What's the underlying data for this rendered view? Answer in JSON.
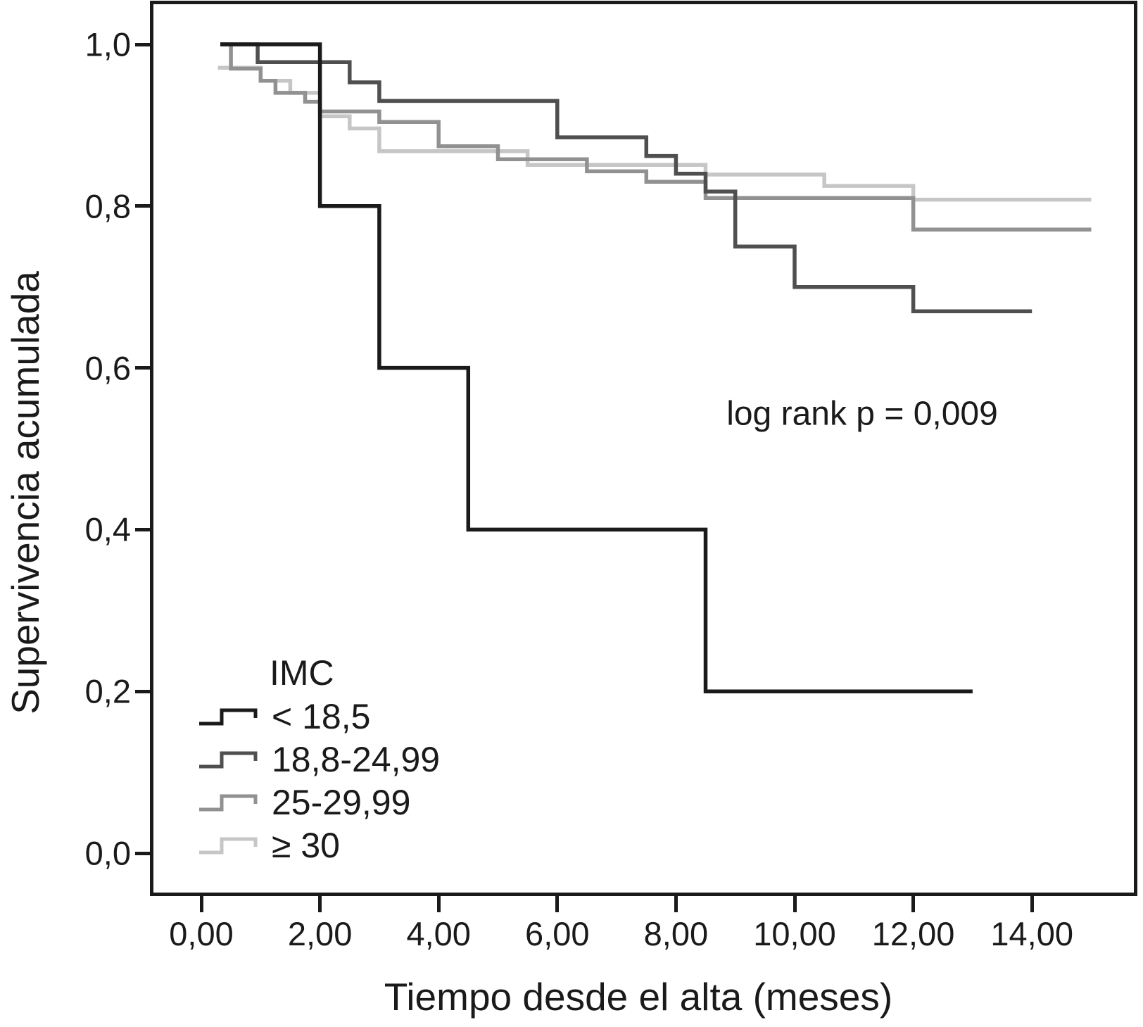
{
  "figure": {
    "background": "#ffffff",
    "frame_color": "#1a1a1a"
  },
  "chart_data": {
    "type": "line",
    "subtype": "kaplan-meier-step-curves",
    "title": "",
    "xlabel": "Tiempo desde el alta (meses)",
    "ylabel": "Supervivencia acumulada",
    "annotation": "log rank p = 0,009",
    "xlim": [
      -0.85,
      15.8
    ],
    "ylim": [
      -0.05,
      1.05
    ],
    "grid": false,
    "xticks": [
      {
        "t": 0,
        "label": "0,00"
      },
      {
        "t": 2,
        "label": "2,00"
      },
      {
        "t": 4,
        "label": "4,00"
      },
      {
        "t": 6,
        "label": "6,00"
      },
      {
        "t": 8,
        "label": "8,00"
      },
      {
        "t": 10,
        "label": "10,00"
      },
      {
        "t": 12,
        "label": "12,00"
      },
      {
        "t": 14,
        "label": "14,00"
      }
    ],
    "yticks": [
      {
        "v": 1.0,
        "label": "1,0"
      },
      {
        "v": 0.8,
        "label": "0,8"
      },
      {
        "v": 0.6,
        "label": "0,6"
      },
      {
        "v": 0.4,
        "label": "0,4"
      },
      {
        "v": 0.2,
        "label": "0,2"
      },
      {
        "v": 0.0,
        "label": "0,0"
      }
    ],
    "legend": {
      "title": "IMC",
      "position": "lower-left",
      "items": [
        {
          "label": "< 18,5",
          "color": "#1a1a1a"
        },
        {
          "label": "18,8-24,99",
          "color": "#4f4f4f"
        },
        {
          "label": "25-29,99",
          "color": "#919191"
        },
        {
          "label": "≥ 30",
          "color": "#c6c6c6"
        }
      ]
    },
    "series": [
      {
        "name": "< 18,5",
        "color": "#1a1a1a",
        "start": [
          0.32,
          1.0
        ],
        "steps": [
          [
            2.0,
            0.8
          ],
          [
            3.0,
            0.6
          ],
          [
            4.5,
            0.4
          ],
          [
            8.5,
            0.2
          ]
        ],
        "end": 13.0
      },
      {
        "name": "18,8-24,99",
        "color": "#4f4f4f",
        "start": [
          0.32,
          1.0
        ],
        "steps": [
          [
            0.95,
            0.978
          ],
          [
            2.5,
            0.953
          ],
          [
            3.0,
            0.93
          ],
          [
            6.0,
            0.885
          ],
          [
            7.5,
            0.862
          ],
          [
            8.0,
            0.84
          ],
          [
            8.5,
            0.818
          ],
          [
            9.0,
            0.75
          ],
          [
            10.0,
            0.7
          ],
          [
            12.0,
            0.67
          ]
        ],
        "end": 14.0
      },
      {
        "name": "25-29,99",
        "color": "#919191",
        "start": [
          0.32,
          1.0
        ],
        "steps": [
          [
            0.5,
            0.97
          ],
          [
            1.0,
            0.955
          ],
          [
            1.25,
            0.94
          ],
          [
            1.75,
            0.929
          ],
          [
            2.0,
            0.917
          ],
          [
            3.0,
            0.904
          ],
          [
            4.0,
            0.874
          ],
          [
            5.0,
            0.858
          ],
          [
            6.5,
            0.843
          ],
          [
            7.5,
            0.83
          ],
          [
            8.5,
            0.81
          ],
          [
            12.0,
            0.771
          ]
        ],
        "end": 15.0
      },
      {
        "name": "≥ 30",
        "color": "#c6c6c6",
        "start": [
          0.28,
          0.971
        ],
        "steps": [
          [
            1.0,
            0.955
          ],
          [
            1.5,
            0.94
          ],
          [
            2.0,
            0.911
          ],
          [
            2.5,
            0.896
          ],
          [
            3.0,
            0.868
          ],
          [
            5.5,
            0.851
          ],
          [
            8.5,
            0.839
          ],
          [
            10.5,
            0.825
          ],
          [
            12.0,
            0.808
          ]
        ],
        "end": 15.0
      }
    ]
  }
}
